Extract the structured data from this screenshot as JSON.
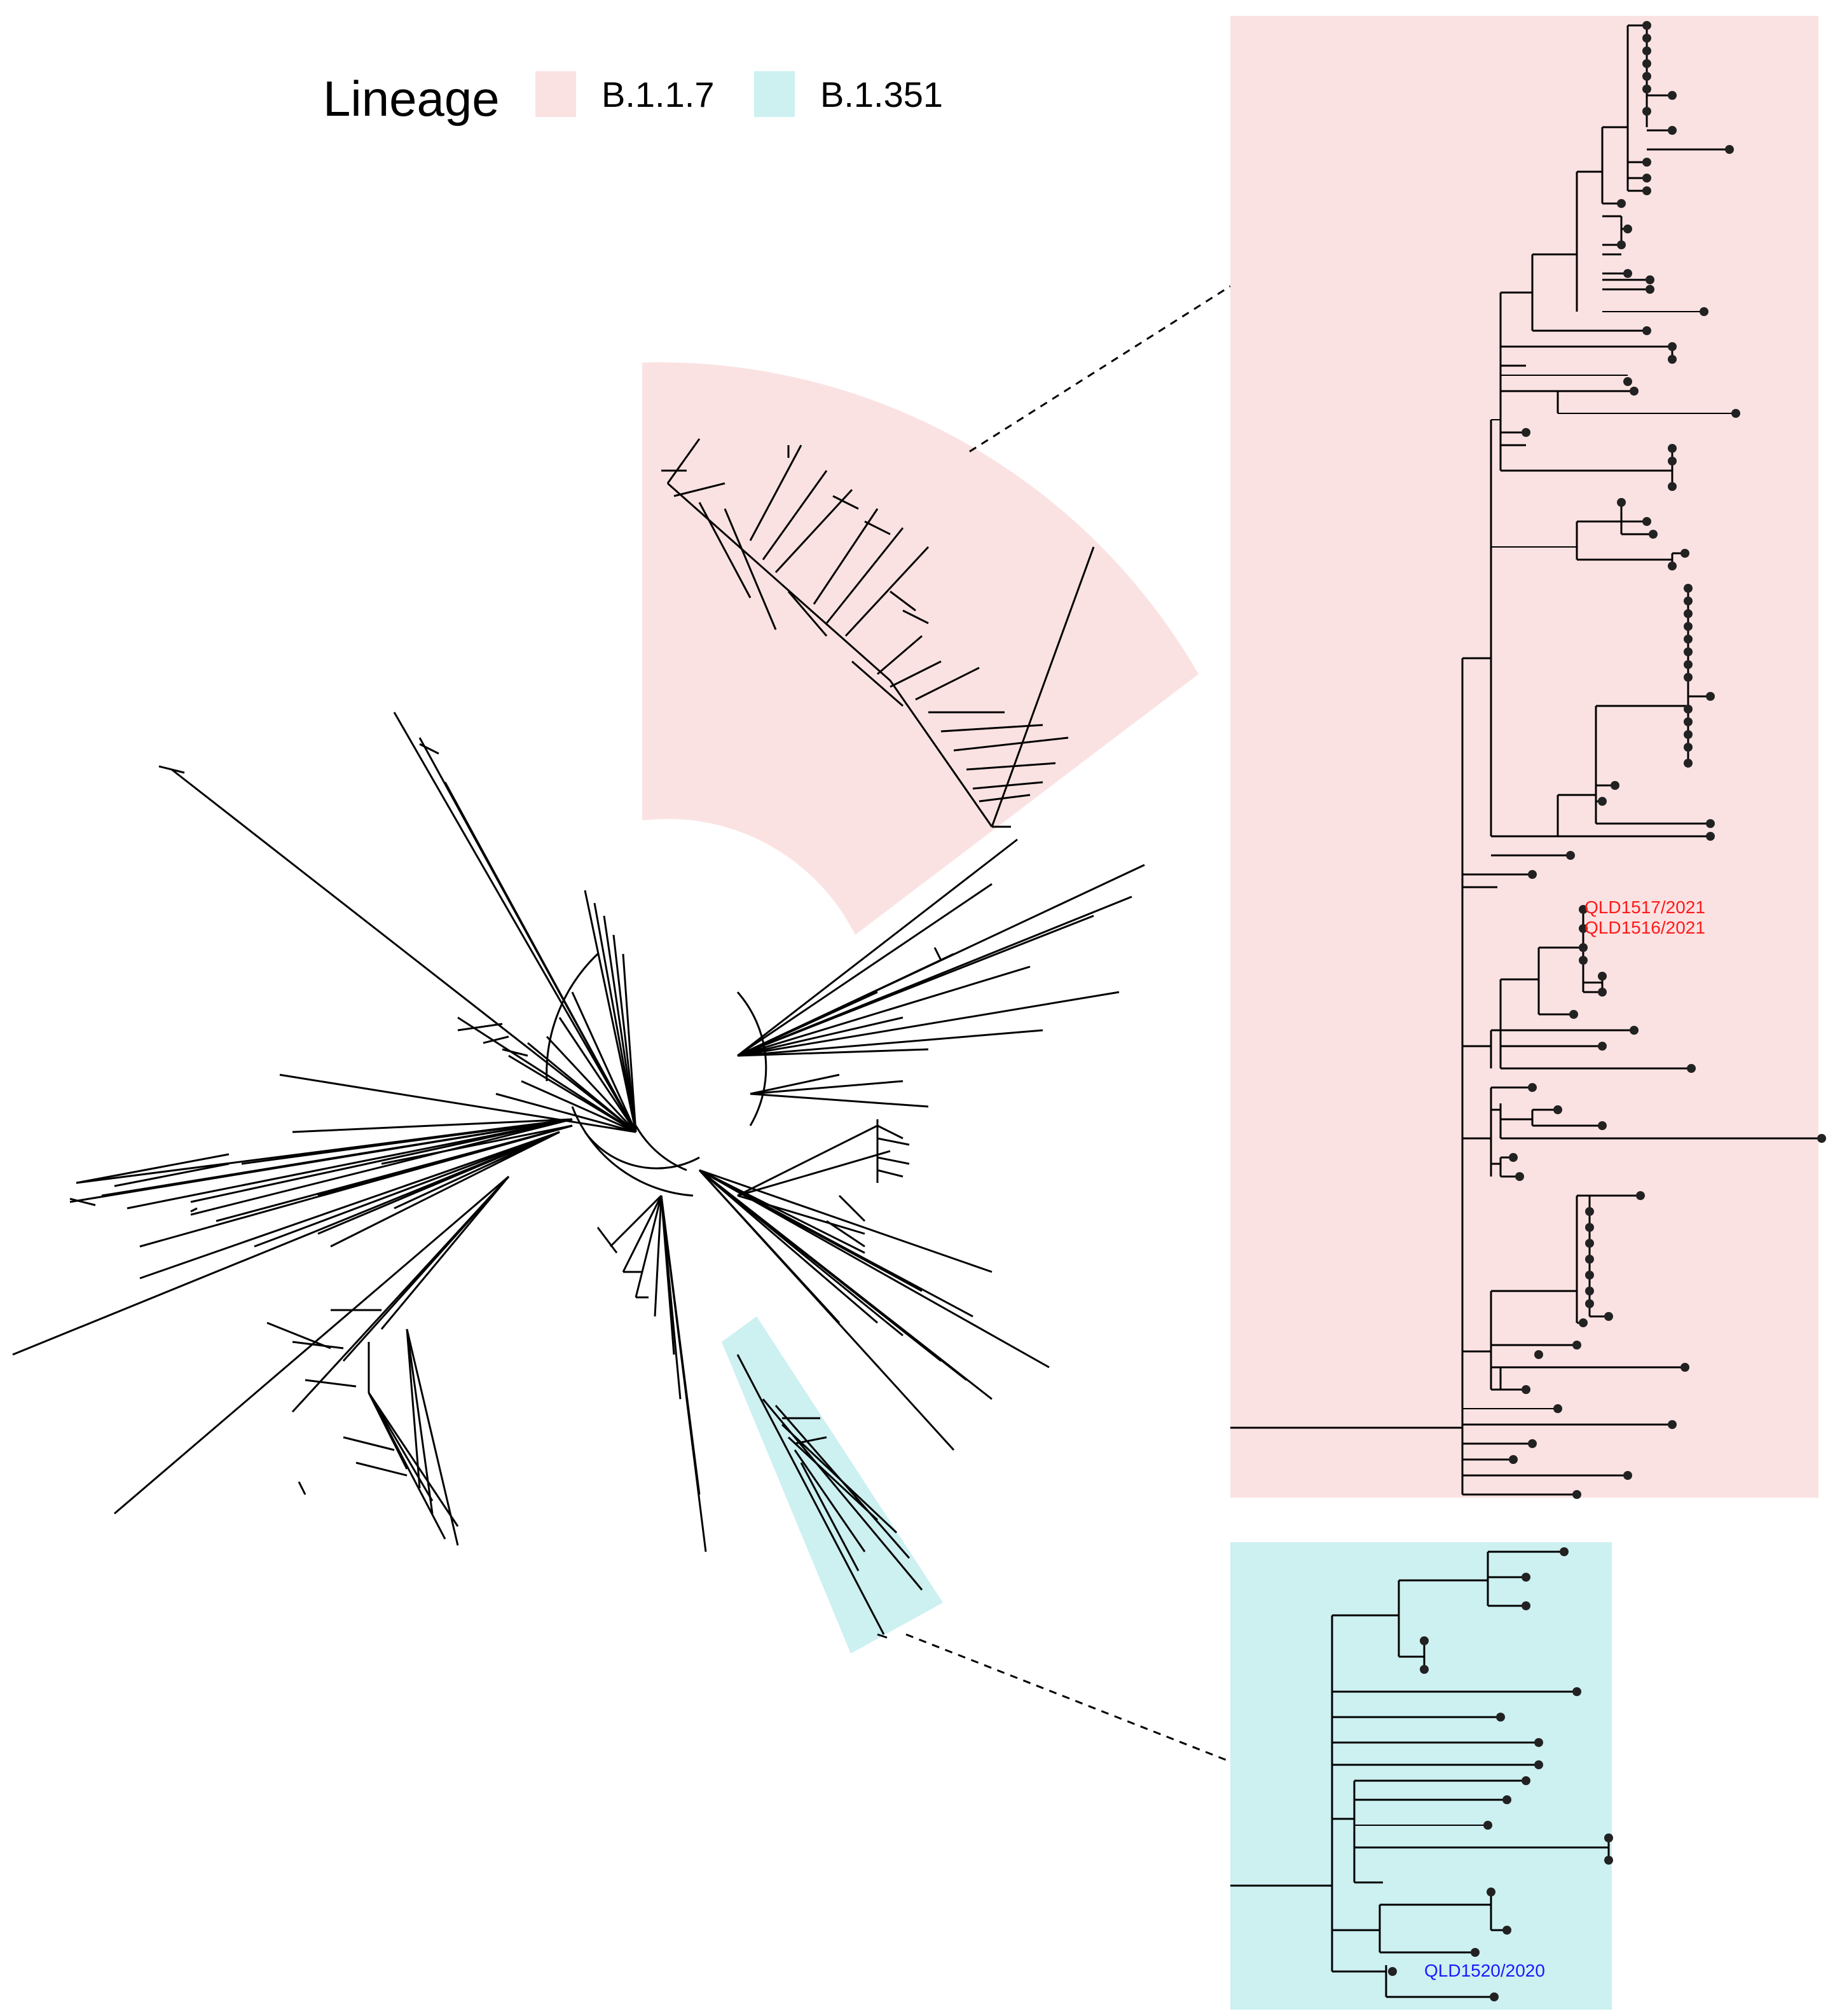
{
  "legend": {
    "title": "Lineage",
    "items": [
      {
        "label": "B.1.1.7",
        "color": "#fbe2e2"
      },
      {
        "label": "B.1.351",
        "color": "#cdf0f1"
      }
    ]
  },
  "highlight_colors": {
    "b117": "#fbe2e2",
    "b1351": "#cdf0f1"
  },
  "tip_labels": {
    "b117": [
      "QLD1517/2021",
      "QLD1516/2021"
    ],
    "b1351": [
      "QLD1520/2020"
    ]
  },
  "label_colors": {
    "b117": "#ff1a1a",
    "b1351": "#1a1aff"
  }
}
